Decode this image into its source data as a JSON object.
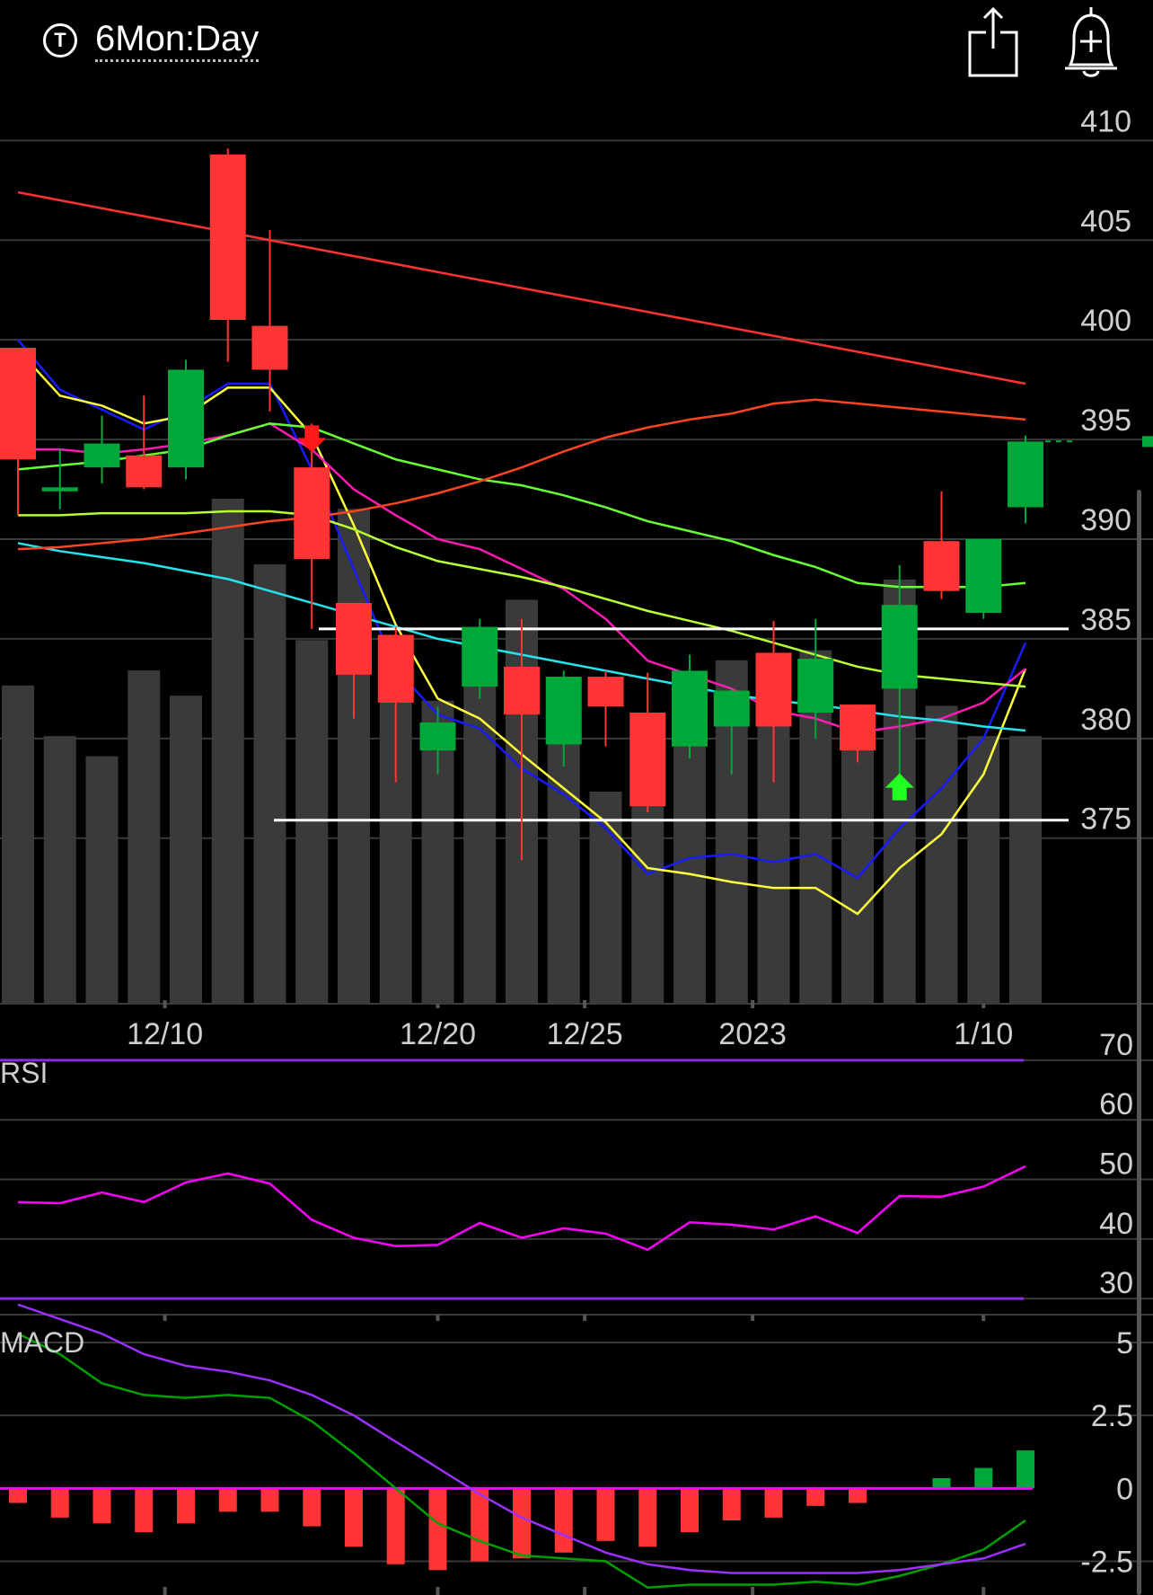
{
  "header": {
    "period_icon": "T",
    "period_label": "6Mon:Day",
    "share_icon": "share-icon",
    "alert_icon": "bell-plus-icon"
  },
  "colors": {
    "up": "#00a83a",
    "down": "#ff3535",
    "volume": "#3a3a3a",
    "grid": "#3a3a3a",
    "rsi": "#ff00ff",
    "rsi_bounds": "#8a2be2",
    "macd_line": "#00a000",
    "macd_signal": "#9b30ff",
    "zero_line": "#ff00ff",
    "hist_up": "#00a83a",
    "hist_down": "#ff3535"
  },
  "chart_data": [
    {
      "type": "candlestick",
      "title": "",
      "xlabel": "",
      "ylabel": "",
      "ylim": [
        368,
        412
      ],
      "yticks": [
        410,
        405,
        400,
        395,
        390,
        385,
        380,
        375
      ],
      "xticks": [
        {
          "label": "12/10",
          "index": 3.5
        },
        {
          "label": "12/20",
          "index": 10
        },
        {
          "label": "12/25",
          "index": 13.5
        },
        {
          "label": "2023",
          "index": 17.5
        },
        {
          "label": "1/10",
          "index": 23
        }
      ],
      "candles": [
        {
          "o": 399.6,
          "h": 399.6,
          "l": 391.2,
          "c": 394.0
        },
        {
          "o": 392.4,
          "h": 394.5,
          "l": 391.5,
          "c": 392.6
        },
        {
          "o": 393.6,
          "h": 396.2,
          "l": 392.8,
          "c": 394.8
        },
        {
          "o": 394.2,
          "h": 397.2,
          "l": 392.5,
          "c": 392.6
        },
        {
          "o": 393.6,
          "h": 399.0,
          "l": 393.0,
          "c": 398.5
        },
        {
          "o": 409.3,
          "h": 409.6,
          "l": 398.9,
          "c": 401.0
        },
        {
          "o": 400.7,
          "h": 405.5,
          "l": 396.4,
          "c": 398.5
        },
        {
          "o": 393.6,
          "h": 395.8,
          "l": 385.5,
          "c": 389.0
        },
        {
          "o": 386.8,
          "h": 386.8,
          "l": 381.0,
          "c": 383.2
        },
        {
          "o": 385.2,
          "h": 385.6,
          "l": 377.8,
          "c": 381.8
        },
        {
          "o": 379.4,
          "h": 381.6,
          "l": 378.2,
          "c": 380.8
        },
        {
          "o": 382.6,
          "h": 386.0,
          "l": 382.0,
          "c": 385.6
        },
        {
          "o": 383.6,
          "h": 386.0,
          "l": 373.9,
          "c": 381.2
        },
        {
          "o": 379.7,
          "h": 383.4,
          "l": 378.6,
          "c": 383.1
        },
        {
          "o": 383.1,
          "h": 383.4,
          "l": 379.6,
          "c": 381.6
        },
        {
          "o": 381.3,
          "h": 383.3,
          "l": 376.3,
          "c": 376.6
        },
        {
          "o": 379.6,
          "h": 384.2,
          "l": 379.0,
          "c": 383.4
        },
        {
          "o": 380.6,
          "h": 382.5,
          "l": 378.2,
          "c": 382.4
        },
        {
          "o": 384.3,
          "h": 385.9,
          "l": 377.8,
          "c": 380.6
        },
        {
          "o": 381.3,
          "h": 386.0,
          "l": 380.0,
          "c": 384.0
        },
        {
          "o": 381.7,
          "h": 381.7,
          "l": 378.8,
          "c": 379.4
        },
        {
          "o": 382.5,
          "h": 388.7,
          "l": 377.8,
          "c": 386.7
        },
        {
          "o": 389.9,
          "h": 392.4,
          "l": 387.0,
          "c": 387.4
        },
        {
          "o": 386.3,
          "h": 390.0,
          "l": 386.0,
          "c": 390.0
        },
        {
          "o": 391.6,
          "h": 395.2,
          "l": 390.8,
          "c": 394.9
        }
      ],
      "volume": [
        0.63,
        0.53,
        0.49,
        0.66,
        0.61,
        1.0,
        0.87,
        0.72,
        0.98,
        0.65,
        0.6,
        0.7,
        0.8,
        0.6,
        0.42,
        0.56,
        0.53,
        0.68,
        0.61,
        0.7,
        0.56,
        0.84,
        0.59,
        0.53,
        0.53
      ],
      "series": [
        {
          "key": "ma_blue",
          "color": "#1a1aff",
          "values": [
            400,
            397.5,
            396.5,
            395.5,
            396.5,
            397.8,
            397.8,
            393.5,
            388.5,
            383.5,
            381.2,
            380.5,
            378.5,
            377.2,
            375.5,
            373.2,
            374.0,
            374.2,
            373.8,
            374.2,
            373.0,
            375.5,
            377.5,
            380,
            384.8
          ]
        },
        {
          "key": "ma_yellow",
          "color": "#ffff3b",
          "values": [
            399.5,
            397.2,
            396.7,
            395.8,
            396.2,
            397.6,
            397.6,
            395.2,
            390.7,
            385.7,
            382.0,
            381.0,
            379.2,
            377.5,
            375.8,
            373.5,
            373.2,
            372.8,
            372.5,
            372.5,
            371.2,
            373.5,
            375.2,
            378.2,
            383.5
          ]
        },
        {
          "key": "ma_magenta",
          "color": "#ff1ab3",
          "values": [
            394.5,
            394.5,
            394.3,
            394.5,
            394.8,
            395.2,
            395.8,
            394.5,
            392.5,
            391.2,
            390.0,
            389.5,
            388.5,
            387.5,
            386.0,
            383.9,
            383.2,
            382.5,
            381.4,
            381.0,
            380.3,
            380.6,
            381.0,
            381.8,
            383.5
          ]
        },
        {
          "key": "ma_green",
          "color": "#66ff33",
          "values": [
            393.5,
            393.7,
            393.9,
            394.2,
            394.5,
            395.2,
            395.8,
            395.6,
            394.8,
            394.0,
            393.5,
            393.0,
            392.7,
            392.2,
            391.6,
            390.9,
            390.4,
            389.9,
            389.2,
            388.6,
            387.8,
            387.6,
            387.6,
            387.6,
            387.8
          ]
        },
        {
          "key": "ma_lime",
          "color": "#b8ff33",
          "values": [
            391.2,
            391.2,
            391.3,
            391.3,
            391.3,
            391.4,
            391.4,
            391.2,
            390.5,
            389.6,
            388.9,
            388.5,
            388.1,
            387.6,
            387.0,
            386.4,
            385.9,
            385.4,
            384.8,
            384.2,
            383.6,
            383.2,
            383.0,
            382.8,
            382.6
          ]
        },
        {
          "key": "ma_cyan",
          "color": "#22e5ee",
          "values": [
            389.8,
            389.4,
            389.1,
            388.8,
            388.4,
            388.0,
            387.4,
            386.8,
            386.2,
            385.6,
            385.0,
            384.6,
            384.2,
            383.8,
            383.4,
            383.0,
            382.6,
            382.2,
            381.9,
            381.7,
            381.4,
            381.1,
            380.9,
            380.6,
            380.4
          ]
        },
        {
          "key": "ma_orange",
          "color": "#ff4422",
          "values": [
            389.5,
            389.6,
            389.8,
            390.0,
            390.3,
            390.6,
            390.9,
            391.1,
            391.4,
            391.8,
            392.3,
            392.9,
            393.6,
            394.4,
            395.1,
            395.6,
            396.0,
            396.3,
            396.8,
            397.0,
            396.8,
            396.6,
            396.4,
            396.2,
            396.0
          ]
        },
        {
          "key": "ma_red_long",
          "color": "#ff3333",
          "values": [
            407.4,
            407.0,
            406.6,
            406.2,
            405.8,
            405.4,
            405.0,
            404.6,
            404.2,
            403.8,
            403.4,
            403.0,
            402.6,
            402.2,
            401.8,
            401.4,
            401.0,
            400.6,
            400.2,
            399.8,
            399.4,
            399.0,
            398.6,
            398.2,
            397.8
          ]
        }
      ],
      "support_lines": [
        385.5,
        375.9
      ],
      "signals": [
        {
          "index": 7,
          "type": "sell"
        },
        {
          "index": 21,
          "type": "buy"
        }
      ]
    },
    {
      "type": "line",
      "title": "RSI",
      "ylim": [
        27,
        73
      ],
      "yticks": [
        70,
        60,
        50,
        40,
        30
      ],
      "bounds": [
        70,
        30
      ],
      "values": [
        46.2,
        46,
        47.8,
        46.2,
        49.5,
        51,
        49.3,
        43.2,
        40.2,
        38.8,
        39,
        42.7,
        40.2,
        41.8,
        40.9,
        38.2,
        42.8,
        42.4,
        41.6,
        43.8,
        41,
        47.2,
        47.1,
        48.8,
        52.2
      ]
    },
    {
      "type": "bar",
      "title": "MACD",
      "ylim": [
        -3.5,
        6.2
      ],
      "yticks": [
        5,
        2.5,
        0,
        -2.5
      ],
      "macd": [
        5.3,
        4.6,
        3.6,
        3.2,
        3.1,
        3.2,
        3.1,
        2.3,
        1.2,
        0,
        -1.2,
        -1.8,
        -2.3,
        -2.4,
        -2.5,
        -3.4,
        -3.3,
        -3.3,
        -3.3,
        -3.2,
        -3.3,
        -3.0,
        -2.6,
        -2.1,
        -1.1
      ],
      "signal": [
        6.3,
        5.8,
        5.3,
        4.6,
        4.2,
        4.0,
        3.7,
        3.2,
        2.5,
        1.6,
        0.7,
        -0.2,
        -1.0,
        -1.6,
        -2.2,
        -2.6,
        -2.8,
        -2.9,
        -2.9,
        -2.9,
        -2.9,
        -2.8,
        -2.6,
        -2.4,
        -1.9
      ],
      "histogram": [
        -0.5,
        -1.0,
        -1.2,
        -1.5,
        -1.2,
        -0.8,
        -0.8,
        -1.3,
        -2.0,
        -2.6,
        -2.8,
        -2.5,
        -2.4,
        -2.2,
        -1.8,
        -2.0,
        -1.5,
        -1.1,
        -1.0,
        -0.6,
        -0.5,
        0,
        0.35,
        0.7,
        1.3
      ]
    }
  ]
}
